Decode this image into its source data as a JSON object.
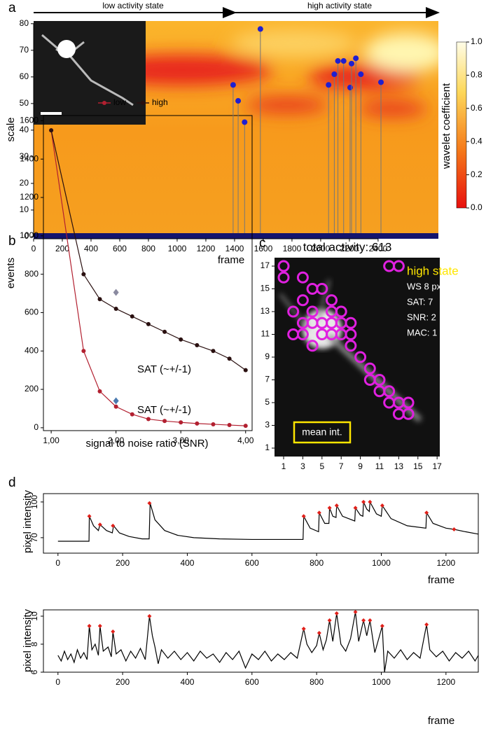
{
  "chart_data": [
    {
      "type": "scatter",
      "panel_label": "a",
      "annotations": [
        "low activity state",
        "high activity state"
      ],
      "x_label": "frame",
      "y_label": "scale",
      "xlim": [
        0,
        2820
      ],
      "ylim": [
        -0.8,
        81
      ],
      "xticks": [
        0,
        200,
        400,
        600,
        800,
        1000,
        1200,
        1400,
        1600,
        1800,
        2000,
        2200,
        2400
      ],
      "yticks": [
        0,
        10,
        20,
        30,
        40,
        50,
        60,
        70,
        80
      ],
      "points": {
        "color": "#1f1fd0",
        "x": [
          1390,
          1425,
          1470,
          1580,
          2055,
          2095,
          2120,
          2160,
          2205,
          2215,
          2245,
          2280,
          2420
        ],
        "y": [
          57,
          51,
          43,
          78,
          57,
          61,
          66,
          66,
          56,
          65,
          67,
          61,
          58
        ]
      },
      "colorbar": {
        "label": "wavelet coefficient",
        "lim": [
          0,
          1
        ],
        "ticks": [
          {
            "value": 0,
            "label": "0.0"
          },
          {
            "value": 0.2,
            "label": "0.2"
          },
          {
            "value": 0.4,
            "label": "0.4"
          },
          {
            "value": 0.6,
            "label": "0.6"
          },
          {
            "value": 0.8,
            "label": "0.8"
          },
          {
            "value": 1,
            "label": "1.0"
          }
        ]
      }
    },
    {
      "type": "line",
      "panel_label": "b",
      "x_label": "signal to noise ratio (SNR)",
      "y_label": "events",
      "xlim": [
        0.88,
        4.1
      ],
      "ylim": [
        -15,
        1627
      ],
      "xticks": [
        {
          "value": 1,
          "label": "1,00"
        },
        {
          "value": 2,
          "label": "2,00"
        },
        {
          "value": 3,
          "label": "3,00"
        },
        {
          "value": 4,
          "label": "4,00"
        }
      ],
      "yticks": [
        0,
        200,
        400,
        600,
        800,
        1000,
        1200,
        1400,
        1600
      ],
      "x": [
        1,
        1.5,
        1.75,
        2,
        2.25,
        2.5,
        2.75,
        3,
        3.25,
        3.5,
        3.75,
        4
      ],
      "series": [
        {
          "name": "low",
          "color": "#b22030",
          "values": [
            1550,
            400,
            190,
            110,
            70,
            45,
            35,
            28,
            22,
            18,
            14,
            10
          ]
        },
        {
          "name": "high",
          "color": "#2a1010",
          "values": [
            1550,
            800,
            670,
            620,
            580,
            540,
            500,
            460,
            430,
            400,
            360,
            300
          ]
        }
      ],
      "annotations": [
        "SAT (~+/-1)",
        "SAT (~+/-1)"
      ]
    },
    {
      "type": "image",
      "panel_label": "c",
      "title": "total activity: 613",
      "xlim": [
        0.05,
        17.28
      ],
      "ylim": [
        0.26,
        17.74
      ],
      "xticks": [
        1,
        3,
        5,
        7,
        9,
        11,
        13,
        15,
        17
      ],
      "yticks": [
        1,
        3,
        5,
        7,
        9,
        11,
        13,
        15,
        17
      ],
      "annotations": [
        "high state",
        "WS 8 px",
        "SAT: 7",
        "SNR: 2",
        "MAC: 1",
        "mean int."
      ]
    },
    {
      "type": "line",
      "panel_label": "d",
      "x_label": "frame",
      "y_label": "pixel intensity",
      "xlim": [
        -45,
        1300
      ],
      "ylim": [
        57,
        107
      ],
      "xticks": [
        0,
        200,
        400,
        600,
        800,
        1000,
        1200
      ],
      "yticks": [
        70,
        100
      ],
      "color": "#000",
      "x": [
        0,
        40,
        80,
        96,
        97,
        110,
        125,
        130,
        150,
        168,
        172,
        190,
        220,
        260,
        282,
        285,
        300,
        330,
        370,
        420,
        500,
        600,
        700,
        758,
        760,
        780,
        806,
        808,
        825,
        838,
        840,
        850,
        860,
        862,
        880,
        918,
        920,
        935,
        943,
        945,
        955,
        963,
        965,
        985,
        1000,
        1003,
        1030,
        1080,
        1138,
        1140,
        1160,
        1200,
        1225,
        1260,
        1300
      ],
      "values": [
        67,
        67,
        67,
        67,
        88,
        80,
        76,
        81,
        76,
        74,
        80,
        74,
        71,
        69,
        69,
        99,
        85,
        76,
        72,
        70,
        69,
        68.5,
        68.5,
        68.5,
        88,
        78,
        75,
        91,
        82,
        82,
        95,
        88,
        87,
        97,
        88,
        84,
        95,
        89,
        88,
        100,
        94,
        92,
        100,
        90,
        88,
        97,
        86,
        80,
        78,
        91,
        82,
        78,
        77,
        75,
        73
      ],
      "peaks": {
        "color": "#e0201a",
        "x": [
          97,
          130,
          170,
          283,
          760,
          808,
          840,
          862,
          920,
          945,
          965,
          1003,
          1140,
          1225
        ],
        "values": [
          88,
          81,
          80,
          99,
          88,
          91,
          95,
          97,
          95,
          100,
          100,
          97,
          91,
          77
        ]
      }
    },
    {
      "type": "line",
      "x_label": "frame",
      "y_label": "pixel intensity",
      "xlim": [
        -45,
        1300
      ],
      "ylim": [
        6,
        10.45
      ],
      "xticks": [
        0,
        200,
        400,
        600,
        800,
        1000,
        1200
      ],
      "yticks": [
        6,
        8,
        10
      ],
      "color": "#000",
      "x": [
        0,
        10,
        20,
        30,
        40,
        50,
        60,
        70,
        80,
        90,
        97,
        105,
        115,
        125,
        130,
        140,
        155,
        165,
        170,
        180,
        195,
        210,
        225,
        240,
        255,
        270,
        283,
        292,
        300,
        310,
        320,
        340,
        360,
        380,
        400,
        420,
        440,
        460,
        480,
        500,
        520,
        540,
        560,
        580,
        600,
        620,
        640,
        660,
        680,
        700,
        720,
        740,
        760,
        770,
        785,
        800,
        808,
        820,
        830,
        840,
        850,
        862,
        875,
        890,
        905,
        920,
        930,
        945,
        955,
        965,
        980,
        1003,
        1010,
        1020,
        1040,
        1060,
        1080,
        1100,
        1120,
        1140,
        1150,
        1170,
        1190,
        1210,
        1230,
        1250,
        1270,
        1290,
        1300
      ],
      "values": [
        7.2,
        6.8,
        7.5,
        6.9,
        7.3,
        6.7,
        7.6,
        7.0,
        7.4,
        6.9,
        9.3,
        7.6,
        8.0,
        7.2,
        9.3,
        7.5,
        7.8,
        7.1,
        8.9,
        7.3,
        7.6,
        6.8,
        7.5,
        7.0,
        7.7,
        6.9,
        10.0,
        8.6,
        7.8,
        6.6,
        7.6,
        7.0,
        7.5,
        6.9,
        7.4,
        6.8,
        7.5,
        7.0,
        7.3,
        6.7,
        7.4,
        6.9,
        7.5,
        6.3,
        7.3,
        6.9,
        7.5,
        6.8,
        7.3,
        6.9,
        7.4,
        7.0,
        9.1,
        8.0,
        7.4,
        7.9,
        8.8,
        7.6,
        8.3,
        9.7,
        8.2,
        10.2,
        8.0,
        7.5,
        8.4,
        10.3,
        8.2,
        9.7,
        8.6,
        9.7,
        7.4,
        9.3,
        6.0,
        7.5,
        7.0,
        7.6,
        6.9,
        7.4,
        7.0,
        9.4,
        7.6,
        7.1,
        7.5,
        6.8,
        7.4,
        7.0,
        7.5,
        6.8,
        7.2
      ],
      "peaks": {
        "color": "#e0201a",
        "x": [
          97,
          130,
          170,
          283,
          760,
          808,
          840,
          862,
          920,
          945,
          965,
          1003,
          1140
        ],
        "values": [
          9.3,
          9.3,
          8.9,
          10.0,
          9.1,
          8.8,
          9.7,
          10.2,
          10.3,
          9.7,
          9.7,
          9.3,
          9.4
        ]
      }
    }
  ]
}
